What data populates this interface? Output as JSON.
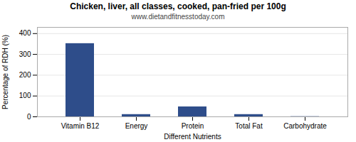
{
  "chart_data": {
    "type": "bar",
    "title": "Chicken, liver, all classes, cooked, pan-fried per 100g",
    "subtitle": "www.dietandfitnesstoday.com",
    "xlabel": "Different Nutrients",
    "ylabel": "Percentage of RDH (%)",
    "categories": [
      "Vitamin B12",
      "Energy",
      "Protein",
      "Total Fat",
      "Carbohydrate"
    ],
    "values": [
      352,
      11,
      48,
      11,
      1
    ],
    "color": "#2e4d8a",
    "ylim": [
      0,
      430
    ],
    "yticks": [
      0,
      100,
      200,
      300,
      400
    ],
    "grid": true
  }
}
